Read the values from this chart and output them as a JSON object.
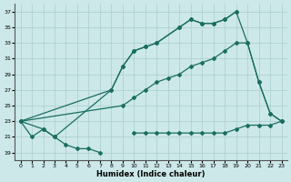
{
  "xlabel": "Humidex (Indice chaleur)",
  "xlim": [
    -0.5,
    23.5
  ],
  "ylim": [
    18,
    38
  ],
  "yticks": [
    19,
    21,
    23,
    25,
    27,
    29,
    31,
    33,
    35,
    37
  ],
  "xticks": [
    0,
    1,
    2,
    3,
    4,
    5,
    6,
    7,
    8,
    9,
    10,
    11,
    12,
    13,
    14,
    15,
    16,
    17,
    18,
    19,
    20,
    21,
    22,
    23
  ],
  "bg_color": "#cce8e8",
  "grid_color": "#aacece",
  "line_color": "#1a6e60",
  "line_width": 0.9,
  "marker_size": 2.0,
  "curve_A_x": [
    0,
    1,
    2,
    3,
    4,
    5,
    6,
    7
  ],
  "curve_A_y": [
    23,
    21,
    22,
    21,
    20,
    19.5,
    19.5,
    19
  ],
  "curve_A2_x": [
    10,
    11,
    12,
    13,
    14,
    15,
    16,
    17,
    18,
    19,
    20,
    21,
    22,
    23
  ],
  "curve_A2_y": [
    21.5,
    21.5,
    21.5,
    21.5,
    21.5,
    21.5,
    21.5,
    21.5,
    21.5,
    22,
    22.5,
    22.5,
    22.5,
    23
  ],
  "curve_B_x": [
    0,
    2,
    3,
    8,
    9,
    10,
    11,
    12,
    14,
    15,
    16,
    17,
    18,
    19
  ],
  "curve_B_y": [
    23,
    22,
    21,
    27,
    30,
    32,
    32.5,
    33,
    35,
    36,
    35.5,
    35.5,
    36,
    37
  ],
  "curve_C_x": [
    0,
    8,
    9,
    10,
    11,
    12,
    14,
    15,
    16,
    17,
    18,
    19,
    20,
    21,
    22,
    23
  ],
  "curve_C_y": [
    23,
    27,
    30,
    32,
    32.5,
    33,
    35,
    36,
    35.5,
    35.5,
    36,
    37,
    33,
    28,
    24,
    23
  ],
  "curve_D_x": [
    0,
    9,
    10,
    11,
    12,
    13,
    14,
    15,
    16,
    17,
    18,
    19,
    20,
    21,
    22,
    23
  ],
  "curve_D_y": [
    23,
    25,
    26,
    27,
    28,
    28.5,
    29,
    30,
    30.5,
    31,
    32,
    33,
    33,
    28,
    24,
    23
  ]
}
